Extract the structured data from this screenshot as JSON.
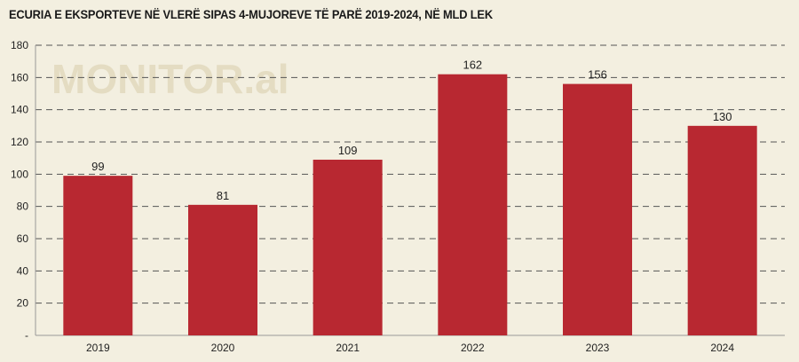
{
  "chart_data": {
    "type": "bar",
    "title": "ECURIA E EKSPORTEVE NË VLERË SIPAS 4-MUJOREVE TË PARË 2019-2024, NË MLD LEK",
    "watermark": "MONITOR.al",
    "categories": [
      "2019",
      "2020",
      "2021",
      "2022",
      "2023",
      "2024"
    ],
    "values": [
      99,
      81,
      109,
      162,
      156,
      130
    ],
    "data_labels": [
      "99",
      "81",
      "109",
      "162",
      "156",
      "130"
    ],
    "yticks": [
      "-",
      "20",
      "40",
      "60",
      "80",
      "100",
      "120",
      "140",
      "160",
      "180"
    ],
    "ylim": [
      0,
      180
    ],
    "grid": true,
    "xlabel": "",
    "ylabel": "",
    "colors": {
      "bar": "#b82831",
      "plot_bg": "#f3efe0",
      "grid": "#555555",
      "text": "#222222"
    }
  }
}
